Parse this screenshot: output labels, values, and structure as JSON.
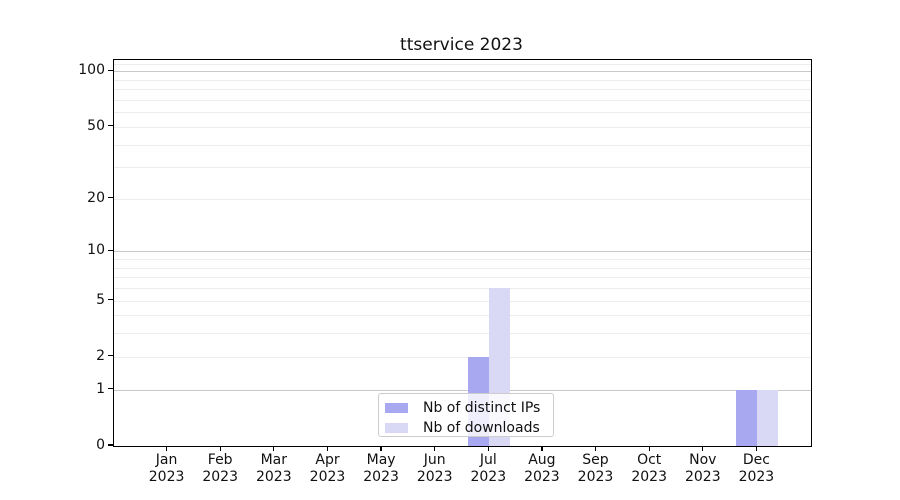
{
  "title": "ttservice 2023",
  "colors": {
    "bar_distinct_ips": "#a8a8f1",
    "bar_downloads": "#d9d9f6",
    "grid_major": "#c8c8c8",
    "grid_minor": "#ececec",
    "axis": "#000000"
  },
  "legend": {
    "position": "lower center"
  },
  "chart_data": {
    "type": "bar",
    "title": "ttservice 2023",
    "categories": [
      "Jan",
      "Feb",
      "Mar",
      "Apr",
      "May",
      "Jun",
      "Jul",
      "Aug",
      "Sep",
      "Oct",
      "Nov",
      "Dec"
    ],
    "category_sublabel": "2023",
    "series": [
      {
        "name": "Nb of distinct IPs",
        "color": "#a8a8f1",
        "values": [
          0,
          0,
          0,
          0,
          0,
          0,
          2,
          0,
          0,
          0,
          0,
          1
        ]
      },
      {
        "name": "Nb of downloads",
        "color": "#d9d9f6",
        "values": [
          0,
          0,
          0,
          0,
          0,
          0,
          6,
          0,
          0,
          0,
          0,
          1
        ]
      }
    ],
    "xlabel": "",
    "ylabel": "",
    "yscale": "log1p",
    "ylim": [
      0,
      115
    ],
    "yticks": [
      0,
      1,
      2,
      5,
      10,
      20,
      50,
      100
    ],
    "major_gridlines": [
      1,
      10,
      100
    ],
    "minor_gridlines": [
      2,
      3,
      4,
      5,
      6,
      7,
      8,
      9,
      20,
      30,
      40,
      50,
      60,
      70,
      80,
      90,
      110
    ],
    "grid": "horizontal",
    "legend_position": "lower center"
  }
}
